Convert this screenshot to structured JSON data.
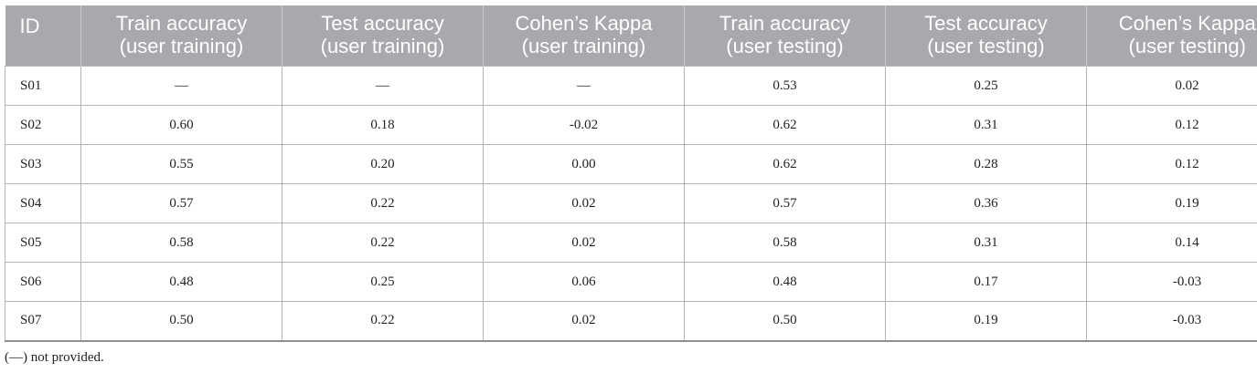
{
  "table": {
    "headers": [
      {
        "line1": "ID",
        "line2": ""
      },
      {
        "line1": "Train accuracy",
        "line2": "(user training)"
      },
      {
        "line1": "Test accuracy",
        "line2": "(user training)"
      },
      {
        "line1": "Cohen’s Kappa",
        "line2": "(user training)"
      },
      {
        "line1": "Train accuracy",
        "line2": "(user testing)"
      },
      {
        "line1": "Test accuracy",
        "line2": "(user testing)"
      },
      {
        "line1": "Cohen’s Kappa",
        "line2": "(user testing)"
      }
    ],
    "rows": [
      [
        "S01",
        "—",
        "—",
        "—",
        "0.53",
        "0.25",
        "0.02"
      ],
      [
        "S02",
        "0.60",
        "0.18",
        "-0.02",
        "0.62",
        "0.31",
        "0.12"
      ],
      [
        "S03",
        "0.55",
        "0.20",
        "0.00",
        "0.62",
        "0.28",
        "0.12"
      ],
      [
        "S04",
        "0.57",
        "0.22",
        "0.02",
        "0.57",
        "0.36",
        "0.19"
      ],
      [
        "S05",
        "0.58",
        "0.22",
        "0.02",
        "0.58",
        "0.31",
        "0.14"
      ],
      [
        "S06",
        "0.48",
        "0.25",
        "0.06",
        "0.48",
        "0.17",
        "-0.03"
      ],
      [
        "S07",
        "0.50",
        "0.22",
        "0.02",
        "0.50",
        "0.19",
        "-0.03"
      ]
    ]
  },
  "footnote": "(—) not provided."
}
